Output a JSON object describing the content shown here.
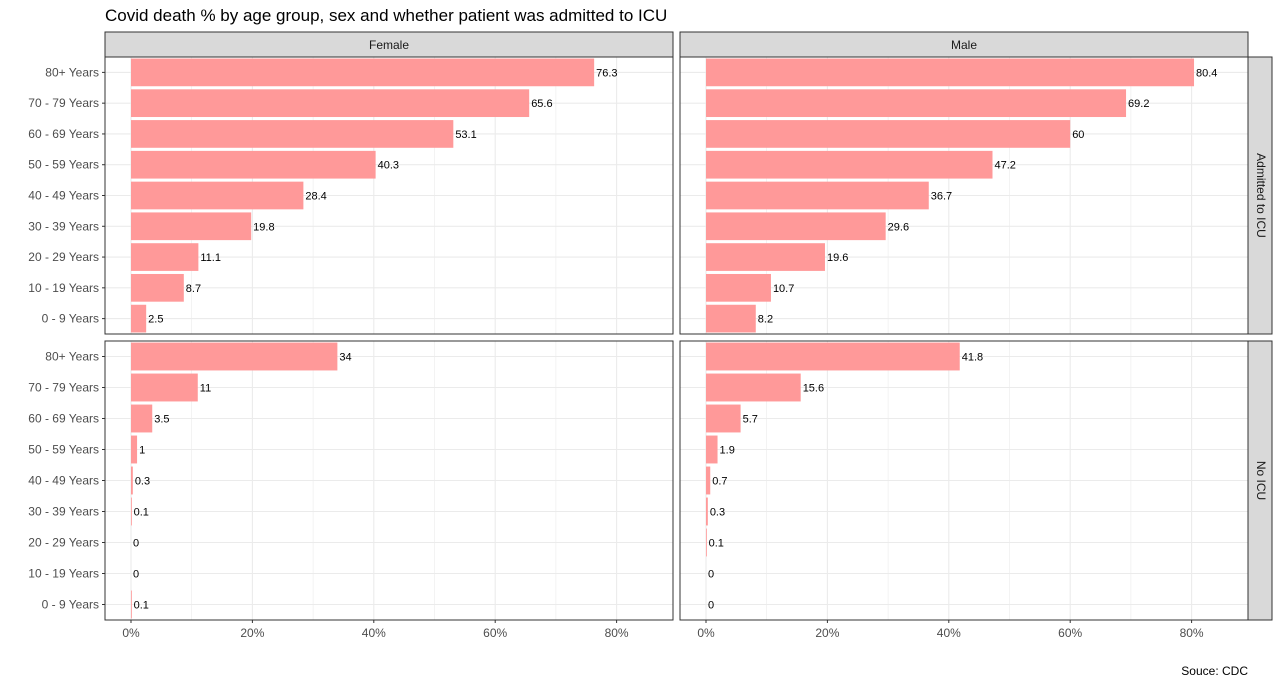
{
  "title": "Covid death % by age group, sex and whether patient was admitted to ICU",
  "caption": "Souce: CDC",
  "colors": {
    "bar": "#ff9999",
    "strip": "#d9d9d9",
    "grid": "#ebebeb",
    "border": "#333333"
  },
  "chart_data": {
    "type": "bar",
    "orientation": "horizontal",
    "facet_columns": [
      "Female",
      "Male"
    ],
    "facet_rows": [
      "Admitted to ICU",
      "No ICU"
    ],
    "categories": [
      "80+ Years",
      "70 - 79 Years",
      "60 - 69 Years",
      "50 - 59 Years",
      "40 - 49 Years",
      "30 - 39 Years",
      "20 - 29 Years",
      "10 - 19 Years",
      "0 - 9 Years"
    ],
    "x_ticks": [
      "0%",
      "20%",
      "40%",
      "60%",
      "80%"
    ],
    "xlim": [
      0,
      88
    ],
    "grid": true,
    "panels": [
      {
        "col": "Female",
        "row": "Admitted to ICU",
        "values": [
          76.3,
          65.6,
          53.1,
          40.3,
          28.4,
          19.8,
          11.1,
          8.7,
          2.5
        ],
        "labels": [
          "76.3",
          "65.6",
          "53.1",
          "40.3",
          "28.4",
          "19.8",
          "11.1",
          "8.7",
          "2.5"
        ]
      },
      {
        "col": "Male",
        "row": "Admitted to ICU",
        "values": [
          80.4,
          69.2,
          60,
          47.2,
          36.7,
          29.6,
          19.6,
          10.7,
          8.2
        ],
        "labels": [
          "80.4",
          "69.2",
          "60",
          "47.2",
          "36.7",
          "29.6",
          "19.6",
          "10.7",
          "8.2"
        ]
      },
      {
        "col": "Female",
        "row": "No ICU",
        "values": [
          34,
          11,
          3.5,
          1,
          0.3,
          0.1,
          0,
          0,
          0.1
        ],
        "labels": [
          "34",
          "11",
          "3.5",
          "1",
          "0.3",
          "0.1",
          "0",
          "0",
          "0.1"
        ]
      },
      {
        "col": "Male",
        "row": "No ICU",
        "values": [
          41.8,
          15.6,
          5.7,
          1.9,
          0.7,
          0.3,
          0.1,
          0,
          0
        ],
        "labels": [
          "41.8",
          "15.6",
          "5.7",
          "1.9",
          "0.7",
          "0.3",
          "0.1",
          "0",
          "0"
        ]
      }
    ]
  }
}
